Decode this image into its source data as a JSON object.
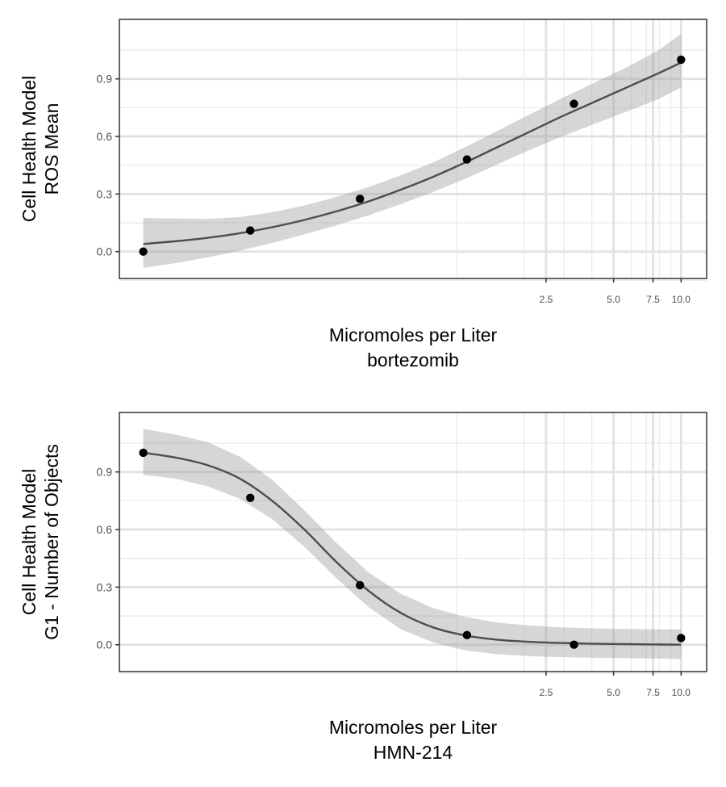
{
  "chart_data": [
    {
      "type": "line",
      "x_scale": "log10",
      "xlabel_lines": [
        "Micromoles per Liter",
        "bortezomib"
      ],
      "ylabel_lines": [
        "Cell Health Model",
        "ROS Mean"
      ],
      "x_tick_labels": [
        "2.5",
        "5.0",
        "7.5",
        "10.0"
      ],
      "x_ticks": [
        2.5,
        5.0,
        7.5,
        10.0
      ],
      "y_tick_labels": [
        "0.0",
        "0.3",
        "0.6",
        "0.9"
      ],
      "y_ticks": [
        0.0,
        0.3,
        0.6,
        0.9
      ],
      "xlim": [
        0.0313,
        13.0
      ],
      "ylim": [
        -0.14,
        1.21
      ],
      "grid": true,
      "points": {
        "x": [
          0.04,
          0.12,
          0.37,
          1.11,
          3.33,
          10.0
        ],
        "y": [
          0.0,
          0.11,
          0.275,
          0.48,
          0.77,
          1.0
        ]
      },
      "fit": {
        "x": [
          0.04,
          0.0557,
          0.0775,
          0.1079,
          0.1502,
          0.2091,
          0.2911,
          0.4052,
          0.5641,
          0.7853,
          1.0932,
          1.5218,
          2.1185,
          2.9491,
          4.1055,
          5.7152,
          7.9561,
          10.0
        ],
        "y": [
          0.04,
          0.054,
          0.072,
          0.096,
          0.127,
          0.165,
          0.21,
          0.262,
          0.323,
          0.39,
          0.465,
          0.545,
          0.625,
          0.705,
          0.78,
          0.855,
          0.93,
          0.985
        ],
        "lower": [
          -0.085,
          -0.06,
          -0.03,
          0.005,
          0.045,
          0.09,
          0.137,
          0.189,
          0.248,
          0.311,
          0.38,
          0.455,
          0.53,
          0.6,
          0.665,
          0.73,
          0.795,
          0.855
        ],
        "upper": [
          0.175,
          0.172,
          0.17,
          0.18,
          0.205,
          0.24,
          0.285,
          0.337,
          0.398,
          0.465,
          0.545,
          0.63,
          0.715,
          0.8,
          0.88,
          0.96,
          1.05,
          1.135
        ]
      }
    },
    {
      "type": "line",
      "x_scale": "log10",
      "xlabel_lines": [
        "Micromoles per Liter",
        "HMN-214"
      ],
      "ylabel_lines": [
        "Cell Health Model",
        "G1 - Number of Objects"
      ],
      "x_tick_labels": [
        "2.5",
        "5.0",
        "7.5",
        "10.0"
      ],
      "x_ticks": [
        2.5,
        5.0,
        7.5,
        10.0
      ],
      "y_tick_labels": [
        "0.0",
        "0.3",
        "0.6",
        "0.9"
      ],
      "y_ticks": [
        0.0,
        0.3,
        0.6,
        0.9
      ],
      "xlim": [
        0.0313,
        13.0
      ],
      "ylim": [
        -0.14,
        1.21
      ],
      "grid": true,
      "points": {
        "x": [
          0.04,
          0.12,
          0.37,
          1.11,
          3.33,
          10.0
        ],
        "y": [
          1.0,
          0.765,
          0.31,
          0.05,
          0.0,
          0.035
        ]
      },
      "fit": {
        "x": [
          0.04,
          0.0557,
          0.0775,
          0.1079,
          0.1502,
          0.2091,
          0.2911,
          0.4052,
          0.5641,
          0.7853,
          1.0932,
          1.5218,
          2.1185,
          2.9491,
          4.1055,
          5.7152,
          7.9561,
          10.0
        ],
        "y": [
          1.0,
          0.975,
          0.935,
          0.865,
          0.75,
          0.6,
          0.43,
          0.28,
          0.165,
          0.09,
          0.048,
          0.026,
          0.015,
          0.009,
          0.005,
          0.003,
          0.001,
          0.0
        ],
        "lower": [
          0.885,
          0.865,
          0.825,
          0.76,
          0.655,
          0.51,
          0.345,
          0.195,
          0.08,
          0.012,
          -0.03,
          -0.05,
          -0.06,
          -0.065,
          -0.068,
          -0.07,
          -0.072,
          -0.075
        ],
        "upper": [
          1.125,
          1.095,
          1.055,
          0.98,
          0.86,
          0.7,
          0.53,
          0.375,
          0.265,
          0.19,
          0.145,
          0.115,
          0.1,
          0.09,
          0.085,
          0.082,
          0.08,
          0.08
        ]
      }
    }
  ]
}
